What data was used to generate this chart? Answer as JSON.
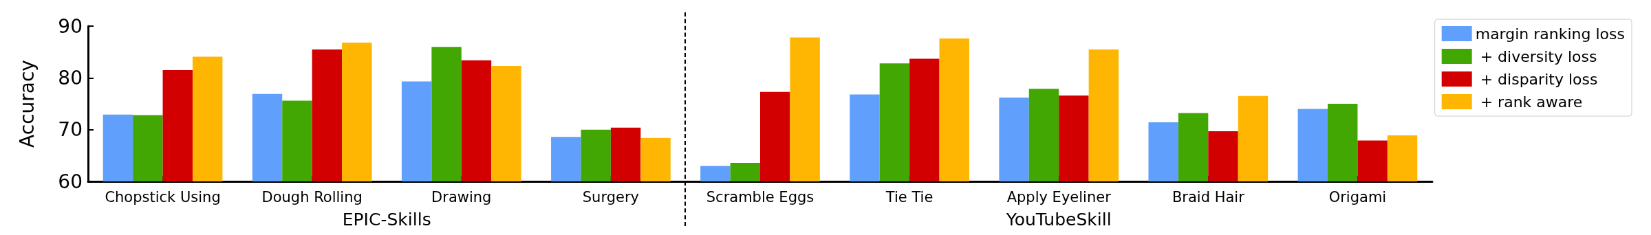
{
  "chart_data": {
    "type": "bar",
    "ylabel": "Accuracy",
    "categories": [
      "Chopstick Using",
      "Dough Rolling",
      "Drawing",
      "Surgery",
      "Scramble Eggs",
      "Tie Tie",
      "Apply Eyeliner",
      "Braid Hair",
      "Origami"
    ],
    "series": [
      {
        "name": "margin ranking loss",
        "color": "#619ffc",
        "values": [
          72.9,
          76.9,
          79.3,
          68.6,
          63.0,
          76.8,
          76.2,
          71.4,
          74.0
        ]
      },
      {
        "name": " + diversity loss",
        "color": "#43a703",
        "values": [
          72.8,
          75.6,
          86.0,
          70.0,
          63.6,
          82.8,
          77.9,
          73.2,
          75.0
        ]
      },
      {
        "name": " + disparity loss",
        "color": "#d20000",
        "values": [
          81.5,
          85.5,
          83.4,
          70.4,
          77.3,
          83.7,
          76.6,
          69.7,
          67.9
        ]
      },
      {
        "name": " + rank aware",
        "color": "#feb602",
        "values": [
          84.1,
          86.8,
          82.3,
          68.4,
          87.8,
          87.6,
          85.5,
          76.5,
          68.9
        ]
      }
    ],
    "annotations": [
      "EPIC-Skills",
      "YouTubeSkill"
    ],
    "ylim": [
      60,
      90
    ],
    "yticks": [
      60,
      70,
      80,
      90
    ],
    "grid": false,
    "legend": "top right"
  }
}
